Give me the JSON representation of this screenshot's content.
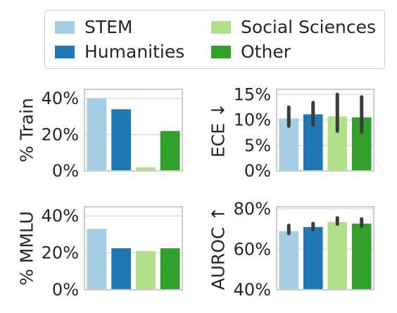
{
  "legend": {
    "entries": [
      {
        "label": "STEM",
        "color": "#a6cee3"
      },
      {
        "label": "Social Sciences",
        "color": "#b2df8a"
      },
      {
        "label": "Humanities",
        "color": "#1f78b4"
      },
      {
        "label": "Other",
        "color": "#33a02c"
      }
    ]
  },
  "chart_data": [
    {
      "type": "bar",
      "ylabel": "% Train",
      "categories": [
        "STEM",
        "Humanities",
        "Social Sciences",
        "Other"
      ],
      "values": [
        40,
        34,
        2,
        22
      ],
      "ylim": [
        0,
        45
      ],
      "yticks": [
        0,
        20,
        40
      ],
      "yticklabels": [
        "0%",
        "20%",
        "40%"
      ],
      "grid": true
    },
    {
      "type": "bar",
      "ylabel": "ECE ↓",
      "categories": [
        "STEM",
        "Humanities",
        "Social Sciences",
        "Other"
      ],
      "values": [
        10.3,
        11.1,
        10.7,
        10.5
      ],
      "error_low": [
        8.8,
        9.0,
        7.8,
        7.6
      ],
      "error_high": [
        12.5,
        13.4,
        15.0,
        14.5
      ],
      "ylim": [
        0,
        16
      ],
      "yticks": [
        0,
        5,
        10,
        15
      ],
      "yticklabels": [
        "0%",
        "5%",
        "10%",
        "15%"
      ],
      "grid": true
    },
    {
      "type": "bar",
      "ylabel": "% MMLU",
      "categories": [
        "STEM",
        "Humanities",
        "Social Sciences",
        "Other"
      ],
      "values": [
        33,
        22.5,
        21,
        22.5
      ],
      "ylim": [
        0,
        45
      ],
      "yticks": [
        0,
        20,
        40
      ],
      "yticklabels": [
        "0%",
        "20%",
        "40%"
      ],
      "grid": true
    },
    {
      "type": "bar",
      "ylabel": "AUROC ↑",
      "categories": [
        "STEM",
        "Humanities",
        "Social Sciences",
        "Other"
      ],
      "values": [
        69,
        71,
        73.5,
        72.7
      ],
      "error_low": [
        67.8,
        69.7,
        72.5,
        71.5
      ],
      "error_high": [
        71.8,
        72.7,
        75.5,
        75.0
      ],
      "ylim": [
        40,
        81
      ],
      "yticks": [
        40,
        60,
        80
      ],
      "yticklabels": [
        "40%",
        "60%",
        "80%"
      ],
      "grid": true
    }
  ]
}
